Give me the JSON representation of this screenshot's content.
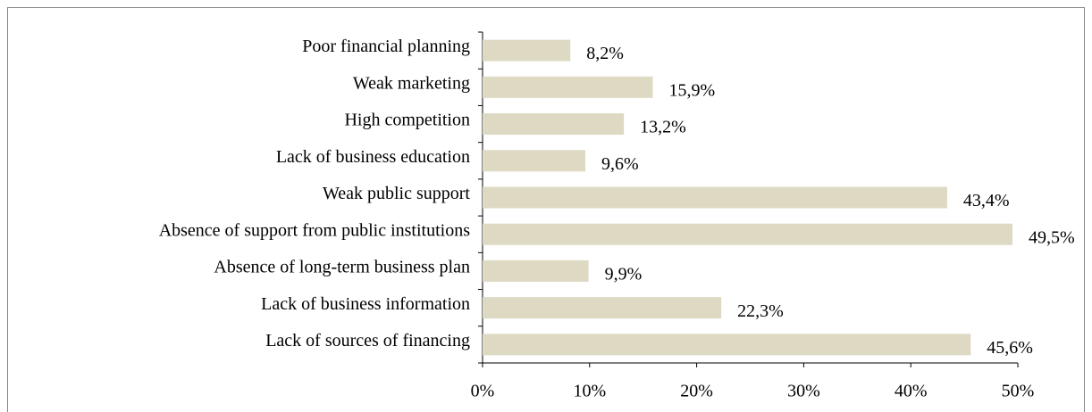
{
  "chart_data": {
    "type": "barh",
    "categories": [
      "Poor financial planning",
      "Weak marketing",
      "High competition",
      "Lack of business education",
      "Weak public support",
      "Absence of support from public institutions",
      "Absence of long-term business plan",
      "Lack of business information",
      "Lack of sources of financing"
    ],
    "values": [
      8.2,
      15.9,
      13.2,
      9.6,
      43.4,
      49.5,
      9.9,
      22.3,
      45.6
    ],
    "value_labels": [
      "8,2%",
      "15,9%",
      "13,2%",
      "9,6%",
      "43,4%",
      "49,5%",
      "9,9%",
      "22,3%",
      "45,6%"
    ],
    "color": "#ddd9c3",
    "xlim": [
      0,
      50
    ],
    "xticks": [
      {
        "value": 0,
        "label": "0%"
      },
      {
        "value": 10,
        "label": "10%"
      },
      {
        "value": 20,
        "label": "20%"
      },
      {
        "value": 30,
        "label": "30%"
      },
      {
        "value": 40,
        "label": "40%"
      },
      {
        "value": 50,
        "label": "50%"
      }
    ]
  }
}
